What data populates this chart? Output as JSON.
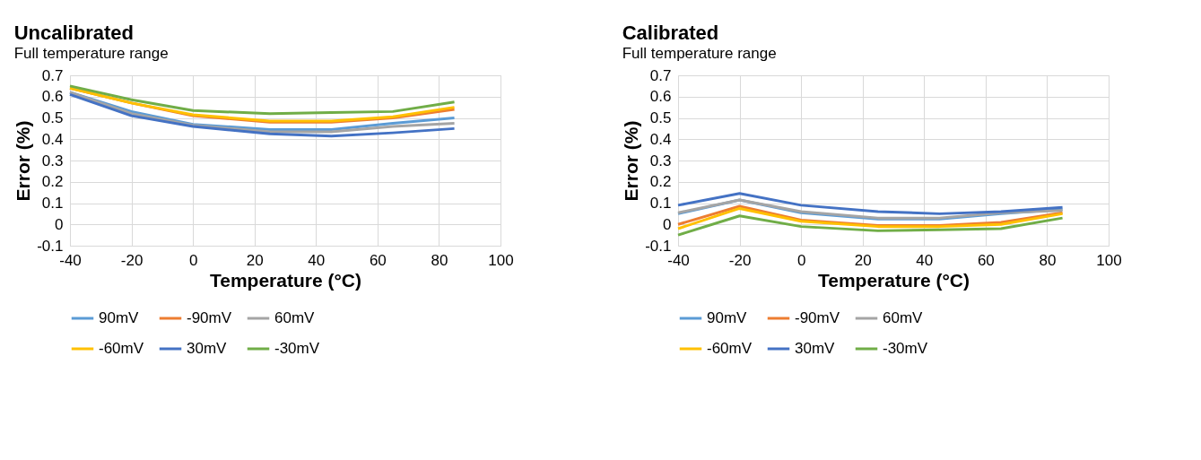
{
  "chart_data": [
    {
      "type": "line",
      "title": "Uncalibrated",
      "subtitle": "Full temperature range",
      "xlabel": "Temperature (°C)",
      "ylabel": "Error (%)",
      "x": [
        -40,
        -20,
        0,
        25,
        45,
        65,
        85
      ],
      "xlim": [
        -40,
        100
      ],
      "xticks": [
        -40,
        -20,
        0,
        20,
        40,
        60,
        80,
        100
      ],
      "ylim": [
        -0.1,
        0.7
      ],
      "yticks": [
        -0.1,
        0,
        0.1,
        0.2,
        0.3,
        0.4,
        0.5,
        0.6,
        0.7
      ],
      "grid": true,
      "legend": "bottom",
      "marker": "none",
      "series": [
        {
          "name": "90mV",
          "color": "#5b9bd5",
          "values": [
            0.62,
            0.53,
            0.47,
            0.445,
            0.445,
            0.475,
            0.5
          ]
        },
        {
          "name": "-90mV",
          "color": "#ed7d31",
          "values": [
            0.64,
            0.57,
            0.51,
            0.48,
            0.48,
            0.5,
            0.54
          ]
        },
        {
          "name": "60mV",
          "color": "#a5a5a5",
          "values": [
            0.62,
            0.52,
            0.465,
            0.435,
            0.435,
            0.46,
            0.475
          ]
        },
        {
          "name": "-60mV",
          "color": "#ffc000",
          "values": [
            0.64,
            0.57,
            0.515,
            0.485,
            0.485,
            0.505,
            0.55
          ]
        },
        {
          "name": "30mV",
          "color": "#4472c4",
          "values": [
            0.61,
            0.51,
            0.46,
            0.425,
            0.415,
            0.43,
            0.45
          ]
        },
        {
          "name": "-30mV",
          "color": "#70ad47",
          "values": [
            0.65,
            0.585,
            0.535,
            0.52,
            0.525,
            0.53,
            0.575
          ]
        }
      ]
    },
    {
      "type": "line",
      "title": "Calibrated",
      "subtitle": "Full temperature range",
      "xlabel": "Temperature (°C)",
      "ylabel": "Error (%)",
      "x": [
        -40,
        -20,
        0,
        25,
        45,
        65,
        85
      ],
      "xlim": [
        -40,
        100
      ],
      "xticks": [
        -40,
        -20,
        0,
        20,
        40,
        60,
        80,
        100
      ],
      "ylim": [
        -0.1,
        0.7
      ],
      "yticks": [
        -0.1,
        0,
        0.1,
        0.2,
        0.3,
        0.4,
        0.5,
        0.6,
        0.7
      ],
      "grid": true,
      "legend": "bottom",
      "marker": "none",
      "series": [
        {
          "name": "90mV",
          "color": "#5b9bd5",
          "values": [
            0.05,
            0.115,
            0.055,
            0.025,
            0.025,
            0.05,
            0.07
          ]
        },
        {
          "name": "-90mV",
          "color": "#ed7d31",
          "values": [
            0.0,
            0.085,
            0.02,
            -0.005,
            -0.005,
            0.01,
            0.055
          ]
        },
        {
          "name": "60mV",
          "color": "#a5a5a5",
          "values": [
            0.055,
            0.115,
            0.06,
            0.03,
            0.03,
            0.055,
            0.065
          ]
        },
        {
          "name": "-60mV",
          "color": "#ffc000",
          "values": [
            -0.02,
            0.075,
            0.015,
            -0.01,
            -0.01,
            0.0,
            0.05
          ]
        },
        {
          "name": "30mV",
          "color": "#4472c4",
          "values": [
            0.09,
            0.145,
            0.09,
            0.06,
            0.05,
            0.06,
            0.08
          ]
        },
        {
          "name": "-30mV",
          "color": "#70ad47",
          "values": [
            -0.05,
            0.04,
            -0.01,
            -0.03,
            -0.025,
            -0.02,
            0.03
          ]
        }
      ]
    }
  ]
}
